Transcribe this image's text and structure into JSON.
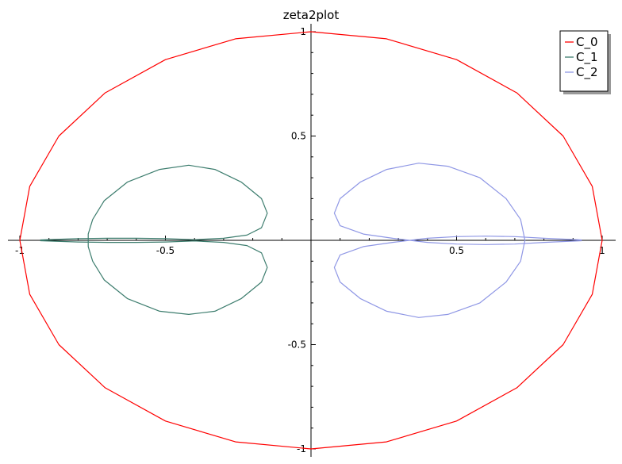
{
  "chart_data": {
    "type": "line",
    "title": "zeta2plot",
    "xlabel": "",
    "ylabel": "",
    "xlim": [
      -1.0,
      1.0
    ],
    "ylim": [
      -1.0,
      1.0
    ],
    "grid": false,
    "legend_position": "top-right",
    "x_ticks": [
      -1,
      -0.5,
      0.5,
      1
    ],
    "x_tick_labels": [
      "-1",
      "-0.5",
      "0.5",
      "1"
    ],
    "y_ticks": [
      1,
      0.5,
      -0.5,
      -1
    ],
    "y_tick_labels": [
      "1",
      "0.5",
      "-0.5",
      "-1"
    ],
    "series": [
      {
        "name": "C_0",
        "color": "#ff0000",
        "points": [
          [
            1.0,
            0.0
          ],
          [
            0.966,
            0.259
          ],
          [
            0.866,
            0.5
          ],
          [
            0.707,
            0.707
          ],
          [
            0.5,
            0.866
          ],
          [
            0.259,
            0.966
          ],
          [
            0.0,
            1.0
          ],
          [
            -0.259,
            0.966
          ],
          [
            -0.5,
            0.866
          ],
          [
            -0.707,
            0.707
          ],
          [
            -0.866,
            0.5
          ],
          [
            -0.966,
            0.259
          ],
          [
            -1.0,
            0.0
          ],
          [
            -0.966,
            -0.259
          ],
          [
            -0.866,
            -0.5
          ],
          [
            -0.707,
            -0.707
          ],
          [
            -0.5,
            -0.866
          ],
          [
            -0.259,
            -0.966
          ],
          [
            0.0,
            -1.0
          ],
          [
            0.259,
            -0.966
          ],
          [
            0.5,
            -0.866
          ],
          [
            0.707,
            -0.707
          ],
          [
            0.866,
            -0.5
          ],
          [
            0.966,
            -0.259
          ],
          [
            1.0,
            0.0
          ]
        ]
      },
      {
        "name": "C_1",
        "color": "#3d7d6e",
        "points": [
          [
            -0.93,
            0.002
          ],
          [
            -0.8,
            0.008
          ],
          [
            -0.7,
            0.01
          ],
          [
            -0.6,
            0.01
          ],
          [
            -0.5,
            0.008
          ],
          [
            -0.4,
            0.003
          ],
          [
            -0.3,
            0.01
          ],
          [
            -0.22,
            0.025
          ],
          [
            -0.17,
            0.06
          ],
          [
            -0.15,
            0.13
          ],
          [
            -0.17,
            0.2
          ],
          [
            -0.24,
            0.28
          ],
          [
            -0.33,
            0.34
          ],
          [
            -0.42,
            0.36
          ],
          [
            -0.52,
            0.34
          ],
          [
            -0.63,
            0.28
          ],
          [
            -0.71,
            0.19
          ],
          [
            -0.75,
            0.1
          ],
          [
            -0.765,
            0.03
          ],
          [
            -0.765,
            -0.03
          ],
          [
            -0.75,
            -0.1
          ],
          [
            -0.71,
            -0.19
          ],
          [
            -0.63,
            -0.28
          ],
          [
            -0.52,
            -0.34
          ],
          [
            -0.42,
            -0.355
          ],
          [
            -0.33,
            -0.34
          ],
          [
            -0.24,
            -0.28
          ],
          [
            -0.17,
            -0.2
          ],
          [
            -0.15,
            -0.13
          ],
          [
            -0.17,
            -0.06
          ],
          [
            -0.22,
            -0.025
          ],
          [
            -0.3,
            -0.01
          ],
          [
            -0.4,
            -0.003
          ],
          [
            -0.5,
            -0.008
          ],
          [
            -0.6,
            -0.01
          ],
          [
            -0.7,
            -0.01
          ],
          [
            -0.8,
            -0.008
          ],
          [
            -0.93,
            -0.002
          ]
        ]
      },
      {
        "name": "C_2",
        "color": "#8f97e5",
        "points": [
          [
            0.93,
            0.002
          ],
          [
            0.8,
            0.01
          ],
          [
            0.7,
            0.018
          ],
          [
            0.6,
            0.02
          ],
          [
            0.5,
            0.018
          ],
          [
            0.4,
            0.01
          ],
          [
            0.28,
            -0.01
          ],
          [
            0.18,
            -0.03
          ],
          [
            0.1,
            -0.07
          ],
          [
            0.08,
            -0.13
          ],
          [
            0.1,
            -0.2
          ],
          [
            0.17,
            -0.28
          ],
          [
            0.26,
            -0.34
          ],
          [
            0.37,
            -0.37
          ],
          [
            0.47,
            -0.355
          ],
          [
            0.58,
            -0.3
          ],
          [
            0.67,
            -0.2
          ],
          [
            0.72,
            -0.1
          ],
          [
            0.735,
            0.0
          ],
          [
            0.72,
            0.1
          ],
          [
            0.67,
            0.2
          ],
          [
            0.58,
            0.3
          ],
          [
            0.47,
            0.355
          ],
          [
            0.37,
            0.37
          ],
          [
            0.26,
            0.34
          ],
          [
            0.17,
            0.28
          ],
          [
            0.1,
            0.2
          ],
          [
            0.08,
            0.13
          ],
          [
            0.1,
            0.07
          ],
          [
            0.18,
            0.03
          ],
          [
            0.28,
            0.01
          ],
          [
            0.4,
            -0.01
          ],
          [
            0.5,
            -0.018
          ],
          [
            0.6,
            -0.02
          ],
          [
            0.7,
            -0.018
          ],
          [
            0.8,
            -0.01
          ],
          [
            0.93,
            -0.002
          ]
        ]
      }
    ]
  }
}
